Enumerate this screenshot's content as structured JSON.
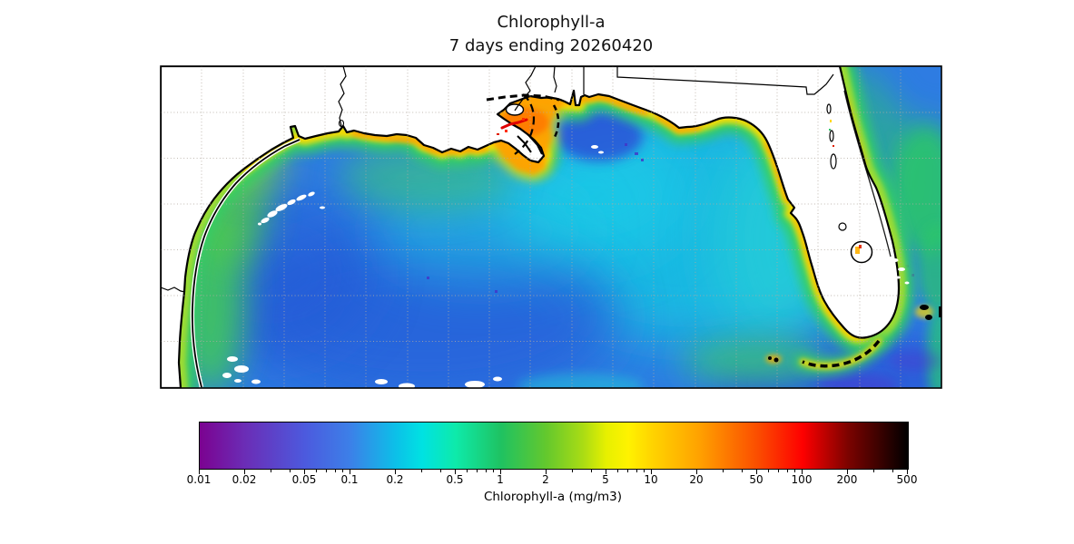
{
  "title": {
    "line1": "Chlorophyll-a",
    "line2": "7 days ending 20260420"
  },
  "map": {
    "land_color": "#ffffff",
    "coastline_color": "#000000",
    "no_data_cloud_color": "#ffffff",
    "gridlines": {
      "style": "dotted",
      "color": "#b3aaa0",
      "vertical_count": 18,
      "horizontal_count": 6
    },
    "frame_color": "#000000"
  },
  "palette": {
    "water_deep_blue": "#2b63d8",
    "water_mid_blue": "#2e7ce2",
    "water_cyan": "#17c6e2",
    "coastal_green": "#36cf63",
    "coastal_yellow_green": "#a7dd2e",
    "bloom_yellow": "#ffd900",
    "bloom_orange": "#ff9d00",
    "bloom_red": "#e00000",
    "offshore_purple": "#4b38cf"
  },
  "chart_data": {
    "type": "heatmap",
    "title": "Chlorophyll-a",
    "subtitle": "7 days ending 20260420",
    "variable": "Chlorophyll-a",
    "units": "mg/m3",
    "region_shown": "Gulf of Mexico and Florida coasts",
    "colorbar": {
      "label": "Chlorophyll-a (mg/m3)",
      "scale": "log",
      "min": 0.01,
      "max": 500,
      "major_ticks": [
        0.01,
        0.02,
        0.05,
        0.1,
        0.2,
        0.5,
        1,
        2,
        5,
        10,
        20,
        50,
        100,
        200,
        500
      ],
      "major_tick_labels": [
        "0.01",
        "0.02",
        "0.05",
        "0.1",
        "0.2",
        "0.5",
        "1",
        "2",
        "5",
        "10",
        "20",
        "50",
        "100",
        "200",
        "500"
      ],
      "minor_tick_mantissas": [
        3,
        4,
        6,
        7,
        8,
        9
      ],
      "stops": [
        {
          "value": 0.01,
          "color": "#7b0290"
        },
        {
          "value": 0.02,
          "color": "#6b2db6"
        },
        {
          "value": 0.05,
          "color": "#4c5ade"
        },
        {
          "value": 0.1,
          "color": "#3c80e8"
        },
        {
          "value": 0.2,
          "color": "#0cc0e8"
        },
        {
          "value": 0.3,
          "color": "#00e2e2"
        },
        {
          "value": 0.5,
          "color": "#0eeaaa"
        },
        {
          "value": 1,
          "color": "#1fc261"
        },
        {
          "value": 2,
          "color": "#64c82d"
        },
        {
          "value": 3.5,
          "color": "#aadc14"
        },
        {
          "value": 5,
          "color": "#e7f000"
        },
        {
          "value": 7,
          "color": "#fff200"
        },
        {
          "value": 10,
          "color": "#ffd400"
        },
        {
          "value": 20,
          "color": "#ffa400"
        },
        {
          "value": 50,
          "color": "#fb4e00"
        },
        {
          "value": 100,
          "color": "#fe0000"
        },
        {
          "value": 200,
          "color": "#7c0300"
        },
        {
          "value": 500,
          "color": "#000000"
        }
      ]
    }
  }
}
